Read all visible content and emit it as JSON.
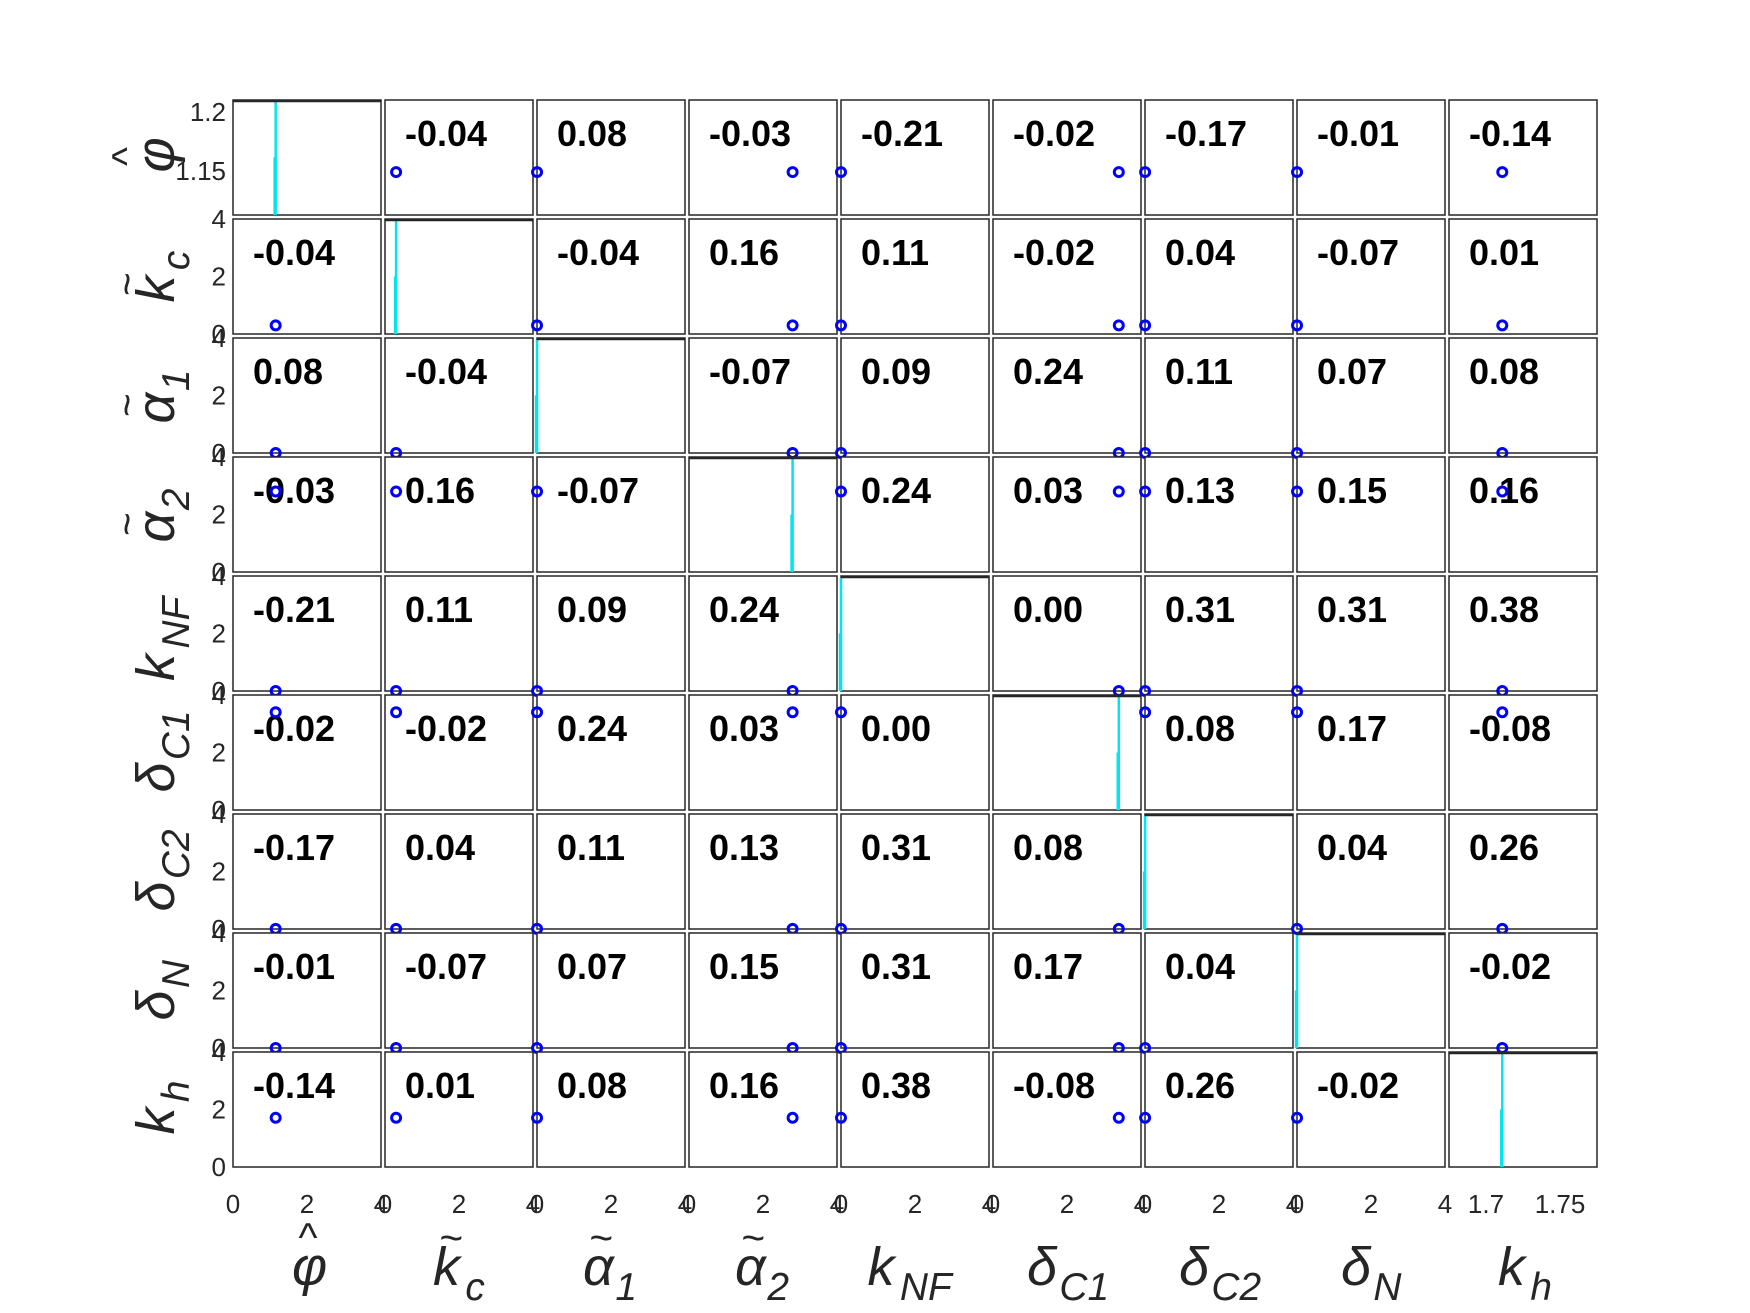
{
  "chart_data": {
    "type": "scatter-matrix",
    "variables": [
      "φ̂",
      "k̃c",
      "α̃1",
      "α̃2",
      "kNF",
      "δC1",
      "δC2",
      "δN",
      "kh"
    ],
    "variable_labels": [
      {
        "base": "φ",
        "accent": "^",
        "sub": ""
      },
      {
        "base": "k",
        "accent": "~",
        "sub": "c"
      },
      {
        "base": "α",
        "accent": "~",
        "sub": "1"
      },
      {
        "base": "α",
        "accent": "~",
        "sub": "2"
      },
      {
        "base": "k",
        "accent": "",
        "sub": "NF"
      },
      {
        "base": "δ",
        "accent": "",
        "sub": "C1"
      },
      {
        "base": "δ",
        "accent": "",
        "sub": "C2"
      },
      {
        "base": "δ",
        "accent": "",
        "sub": "N"
      },
      {
        "base": "k",
        "accent": "",
        "sub": "h"
      }
    ],
    "correlation_labels": [
      [
        "",
        "-0.04",
        "0.08",
        "-0.03",
        "-0.21",
        "-0.02",
        "-0.17",
        "-0.01",
        "-0.14"
      ],
      [
        "-0.04",
        "",
        "-0.04",
        "0.16",
        "0.11",
        "-0.02",
        "0.04",
        "-0.07",
        "0.01"
      ],
      [
        "0.08",
        "-0.04",
        "",
        "-0.07",
        "0.09",
        "0.24",
        "0.11",
        "0.07",
        "0.08"
      ],
      [
        "-0.03",
        "0.16",
        "-0.07",
        "",
        "0.24",
        "0.03",
        "0.13",
        "0.15",
        "0.16"
      ],
      [
        "-0.21",
        "0.11",
        "0.09",
        "0.24",
        "",
        "0.00",
        "0.31",
        "0.31",
        "0.38"
      ],
      [
        "-0.02",
        "-0.02",
        "0.24",
        "0.03",
        "0.00",
        "",
        "0.08",
        "0.17",
        "-0.08"
      ],
      [
        "-0.17",
        "0.04",
        "0.11",
        "0.13",
        "0.31",
        "0.08",
        "",
        "0.04",
        "0.26"
      ],
      [
        "-0.01",
        "-0.07",
        "0.07",
        "0.15",
        "0.31",
        "0.17",
        "0.04",
        "",
        "-0.02"
      ],
      [
        "-0.14",
        "0.01",
        "0.08",
        "0.16",
        "0.38",
        "-0.08",
        "0.26",
        "-0.02",
        ""
      ]
    ],
    "values": [
      1.153,
      0.3,
      0.001,
      2.8,
      0.0,
      3.4,
      0.003,
      0.001,
      1.711
    ],
    "axis_ticks": {
      "x_default": [
        "0",
        "2",
        "4"
      ],
      "x_last": [
        "1.7",
        "1.75"
      ],
      "y_first": [
        "1.2",
        "1.15"
      ],
      "y_default": [
        "4",
        "2",
        "0"
      ]
    },
    "xlim_default": [
      0,
      4
    ],
    "xlim_last": [
      1.675,
      1.775
    ],
    "ylim_first": [
      1.125,
      1.2
    ],
    "ylim_default": [
      0,
      4
    ],
    "histogram_color": "#00e5ee",
    "marker_color": "#0000ff",
    "grid": false
  }
}
